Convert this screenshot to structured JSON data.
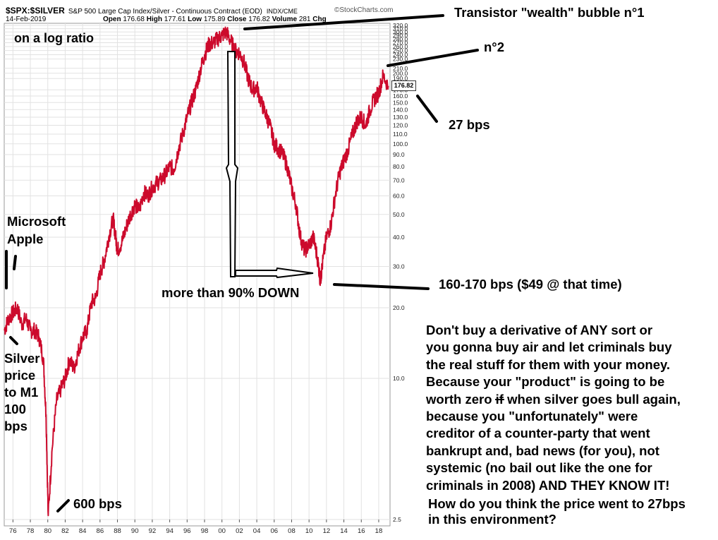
{
  "header": {
    "symbol": "$SPX:$SILVER",
    "description": "S&P 500 Large Cap Index/Silver - Continuous Contract (EOD)",
    "exchange": "INDX/CME",
    "date": "14-Feb-2019",
    "open_label": "Open",
    "open_value": "176.68",
    "high_label": "High",
    "high_value": "177.61",
    "low_label": "Low",
    "low_value": "175.89",
    "close_label": "Close",
    "close_value": "176.82",
    "volume_label": "Volume",
    "volume_value": "281",
    "chg_label": "Chg",
    "brand": "©StockCharts.com",
    "last_value": "176.82"
  },
  "annotations": {
    "log_ratio": "on a log ratio",
    "bubble1": "Transistor \"wealth\" bubble n°1",
    "bubble2": "n°2",
    "bps27": "27 bps",
    "microsoft": "Microsoft",
    "apple": "Apple",
    "silver_lines": [
      "Silver",
      "price",
      "to M1",
      "100",
      "bps"
    ],
    "bps600": "600 bps",
    "down90": "more than 90% DOWN",
    "bps160": "160-170 bps ($49 @ that time)",
    "rant_lines": [
      "Don't buy a derivative of ANY sort or",
      "you gonna buy air and let criminals buy",
      "the real stuff for them with your money.",
      "Because your \"product\" is going to be",
      "worth zero",
      "when silver goes bull again,",
      "because you \"unfortunately\" were",
      "creditor of a counter-party that went",
      "bankrupt and, bad news (for you), not",
      "systemic (no bail out like the one for",
      "criminals in 2008) AND THEY KNOW IT!"
    ],
    "rant_struck": "if",
    "question_lines": [
      "How do you think the price went to 27bps",
      "in this environment?"
    ]
  },
  "colors": {
    "series": "#cc0a2c",
    "grid": "#e2e2e2",
    "axis": "#222222",
    "text": "#000000"
  },
  "chart_data": {
    "type": "line",
    "series": [
      {
        "x": [
          1975.0,
          1975.5,
          1976.0,
          1976.5,
          1977.0,
          1977.5,
          1978.0,
          1978.5,
          1979.0,
          1979.5,
          1979.8,
          1980.05,
          1980.5,
          1981.0,
          1981.5,
          1982.0,
          1982.5,
          1983.0,
          1983.5,
          1984.0,
          1984.5,
          1985.0,
          1985.5,
          1986.0,
          1986.5,
          1987.0,
          1987.5,
          1987.8,
          1988.0,
          1988.5,
          1989.0,
          1989.5,
          1990.0,
          1990.5,
          1991.0,
          1991.5,
          1992.0,
          1992.5,
          1993.0,
          1993.5,
          1994.0,
          1994.5,
          1995.0,
          1995.5,
          1996.0,
          1996.5,
          1997.0,
          1997.5,
          1998.0,
          1998.5,
          1999.0,
          1999.5,
          2000.0,
          2000.5,
          2001.0,
          2001.5,
          2002.0,
          2002.5,
          2003.0,
          2003.5,
          2004.0,
          2004.5,
          2005.0,
          2005.5,
          2006.0,
          2006.5,
          2007.0,
          2007.5,
          2008.0,
          2008.5,
          2009.0,
          2009.5,
          2010.0,
          2010.5,
          2011.0,
          2011.3,
          2011.5,
          2012.0,
          2012.5,
          2013.0,
          2013.5,
          2014.0,
          2014.5,
          2015.0,
          2015.5,
          2016.0,
          2016.5,
          2017.0,
          2017.5,
          2018.0,
          2018.5,
          2019.1
        ],
        "y": [
          16,
          18,
          19,
          20,
          17,
          18,
          16,
          16,
          15,
          12,
          7,
          2.6,
          5,
          8,
          9,
          10,
          12,
          11,
          13,
          15,
          16,
          21,
          22,
          28,
          32,
          40,
          48,
          40,
          35,
          38,
          44,
          50,
          55,
          52,
          62,
          60,
          65,
          68,
          70,
          74,
          80,
          78,
          95,
          110,
          130,
          150,
          170,
          205,
          240,
          265,
          270,
          280,
          290,
          300,
          275,
          250,
          245,
          225,
          190,
          170,
          175,
          150,
          135,
          120,
          100,
          95,
          90,
          80,
          65,
          55,
          40,
          35,
          37,
          40,
          32,
          26,
          30,
          40,
          45,
          60,
          75,
          85,
          95,
          110,
          125,
          130,
          120,
          140,
          155,
          165,
          195,
          176.82
        ],
        "ylim": [
          2.5,
          320
        ],
        "xlim": [
          1975,
          2019.3
        ],
        "scale": "log"
      }
    ],
    "yticks": [
      2.5,
      10.0,
      20.0,
      30.0,
      40.0,
      50.0,
      60.0,
      70.0,
      80.0,
      90.0,
      100.0,
      110.0,
      120.0,
      130.0,
      140.0,
      150.0,
      160.0,
      170.0,
      190.0,
      200.0,
      210.0,
      230.0,
      240.0,
      250.0,
      260.0,
      270.0,
      280.0,
      290.0,
      300.0,
      310.0,
      320.0
    ],
    "ytick_labels": [
      "2.5",
      "10.0",
      "20.0",
      "30.0",
      "40.0",
      "50.0",
      "60.0",
      "70.0",
      "80.0",
      "90.0",
      "100.0",
      "110.0",
      "120.0",
      "130.0",
      "140.0",
      "150.0",
      "160.0",
      "170.0",
      "190.0",
      "200.0",
      "210.0",
      "230.0",
      "240.0",
      "250.0",
      "260.0",
      "270.0",
      "280.0",
      "290.0",
      "300.0",
      "310.0",
      "320.0"
    ],
    "xtick_years": [
      1976,
      1978,
      1980,
      1982,
      1984,
      1986,
      1988,
      1990,
      1992,
      1994,
      1996,
      1998,
      2000,
      2002,
      2004,
      2006,
      2008,
      2010,
      2012,
      2014,
      2016,
      2018
    ],
    "xtick_labels": [
      "76",
      "78",
      "80",
      "82",
      "84",
      "86",
      "88",
      "90",
      "92",
      "94",
      "96",
      "98",
      "00",
      "02",
      "04",
      "06",
      "08",
      "10",
      "12",
      "14",
      "16",
      "18"
    ],
    "grid": true
  }
}
